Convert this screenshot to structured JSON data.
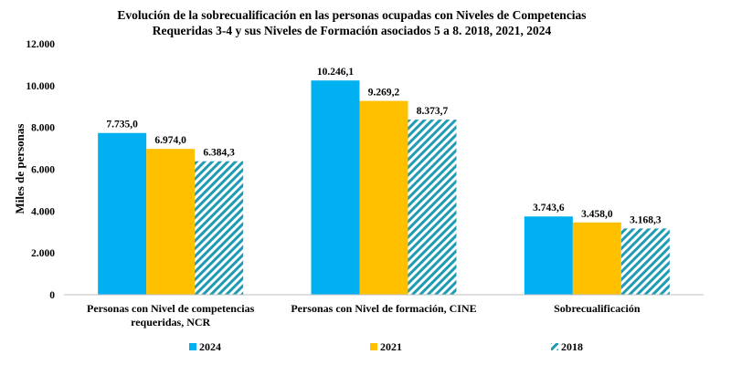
{
  "chart_data": {
    "type": "bar",
    "title_lines": [
      "Evolución de la sobrecualificación en las personas ocupadas con Niveles de Competencias",
      "Requeridas 3-4 y sus Niveles de Formación asociados 5 a 8. 2018, 2021, 2024"
    ],
    "ylabel": "Miles de personas",
    "xlabel": "",
    "ylim": [
      0,
      12000
    ],
    "yticks": [
      0,
      2000,
      4000,
      6000,
      8000,
      10000,
      12000
    ],
    "ytick_labels": [
      "0",
      "2.000",
      "4.000",
      "6.000",
      "8.000",
      "10.000",
      "12.000"
    ],
    "categories": [
      [
        "Personas con Nivel de competencias",
        "requeridas, NCR"
      ],
      [
        "Personas con Nivel de formación, CINE"
      ],
      [
        "Sobrecualificación"
      ]
    ],
    "grid": false,
    "legend_position": "bottom",
    "series": [
      {
        "name": "2024",
        "color": "#00B0F0",
        "pattern": "solid",
        "values": [
          7735.0,
          10246.1,
          3743.6
        ],
        "labels": [
          "7.735,0",
          "10.246,1",
          "3.743,6"
        ]
      },
      {
        "name": "2021",
        "color": "#FFC000",
        "pattern": "solid",
        "values": [
          6974.0,
          9269.2,
          3458.0
        ],
        "labels": [
          "6.974,0",
          "9.269,2",
          "3.458,0"
        ]
      },
      {
        "name": "2018",
        "color": "#1F9BB3",
        "pattern": "hatch",
        "values": [
          6384.3,
          8373.7,
          3168.3
        ],
        "labels": [
          "6.384,3",
          "8.373,7",
          "3.168,3"
        ]
      }
    ]
  }
}
